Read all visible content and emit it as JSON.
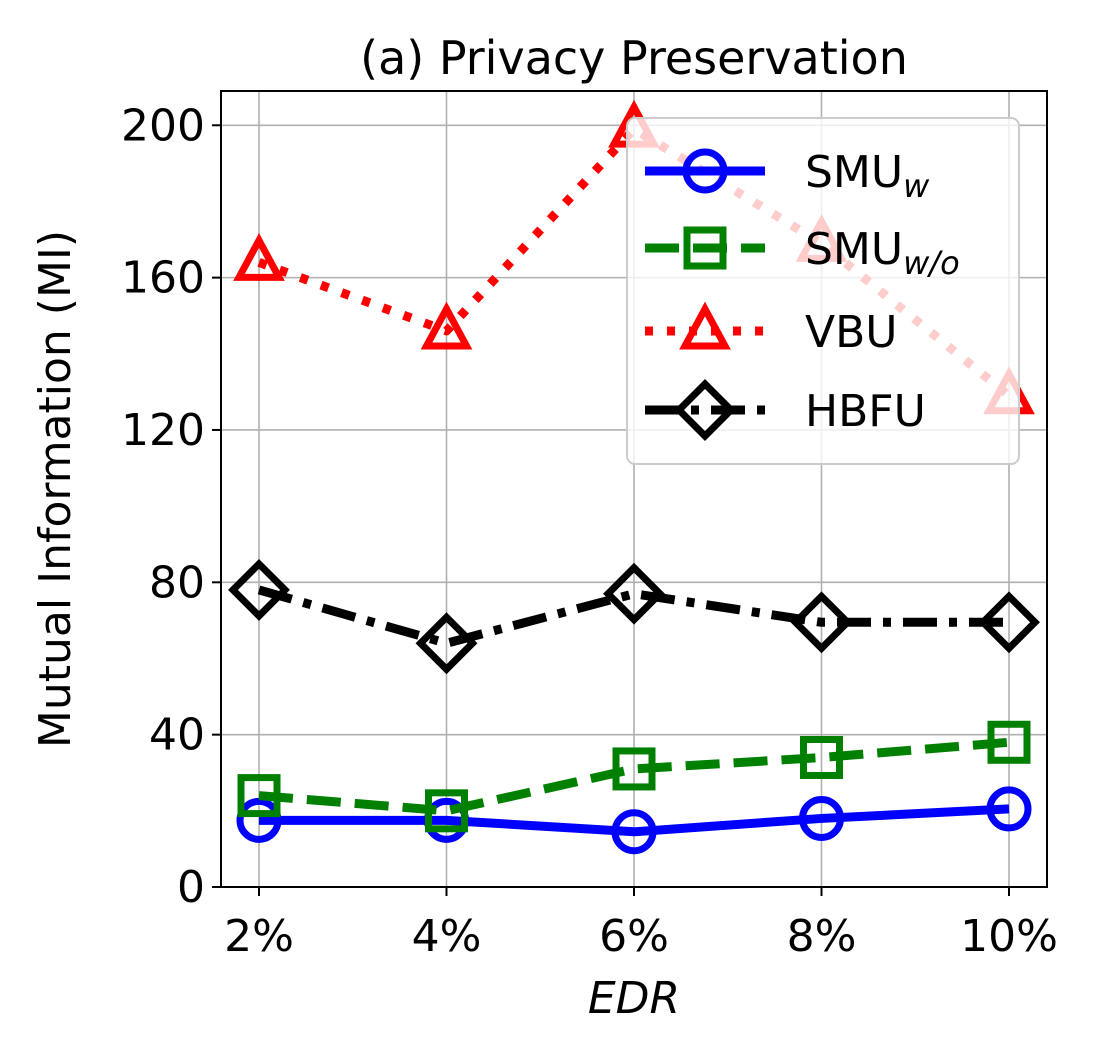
{
  "chart_data": {
    "type": "line",
    "title": "(a) Privacy Preservation",
    "xlabel": "EDR",
    "ylabel": "Mutual Information (MI)",
    "categories": [
      "2%",
      "4%",
      "6%",
      "8%",
      "10%"
    ],
    "ylim": [
      0,
      209
    ],
    "yticks": [
      0,
      40,
      80,
      120,
      160,
      200
    ],
    "ytick_labels": [
      "0",
      "40",
      "80",
      "120",
      "160",
      "200"
    ],
    "grid": true,
    "legend_position": "top-right",
    "series": [
      {
        "name": "SMU",
        "sub": "w",
        "color": "#0000ff",
        "marker": "circle",
        "dash": "solid",
        "values": [
          17.5,
          17.5,
          14.5,
          18,
          20.5
        ]
      },
      {
        "name": "SMU",
        "sub": "w/o",
        "color": "#008000",
        "marker": "square",
        "dash": "dashed",
        "values": [
          24,
          20,
          31,
          34,
          38
        ]
      },
      {
        "name": "VBU",
        "sub": "",
        "color": "#ff0000",
        "marker": "triangle",
        "dash": "dotted",
        "values": [
          164,
          146,
          199,
          169,
          129
        ]
      },
      {
        "name": "HBFU",
        "sub": "",
        "color": "#000000",
        "marker": "diamond",
        "dash": "dashdot",
        "values": [
          78,
          64,
          77,
          69.5,
          69.5
        ]
      }
    ]
  }
}
